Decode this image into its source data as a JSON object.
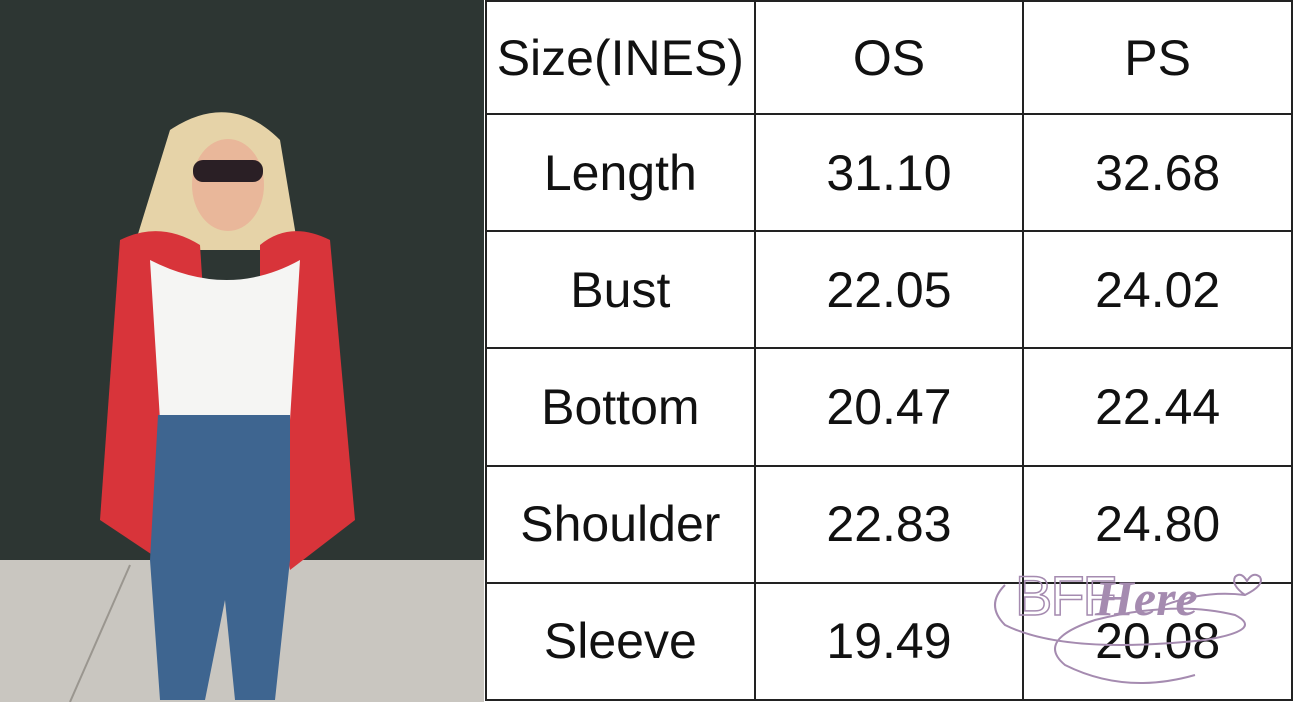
{
  "size_chart": {
    "headers": [
      "Size(INES)",
      "OS",
      "PS"
    ],
    "rows": [
      {
        "label": "Length",
        "os": "31.10",
        "ps": "32.68"
      },
      {
        "label": "Bust",
        "os": "22.05",
        "ps": "24.02"
      },
      {
        "label": "Bottom",
        "os": "20.47",
        "ps": "22.44"
      },
      {
        "label": "Shoulder",
        "os": "22.83",
        "ps": "24.80"
      },
      {
        "label": "Sleeve",
        "os": "19.49",
        "ps": "20.08"
      }
    ]
  },
  "watermark": {
    "text": "BFF Here",
    "color": "#a58bb0"
  },
  "photo": {
    "wall_color": "#2c3532",
    "cardigan_color": "#d8343a",
    "top_color": "#f7f7f5",
    "jeans_color": "#3e6590"
  }
}
